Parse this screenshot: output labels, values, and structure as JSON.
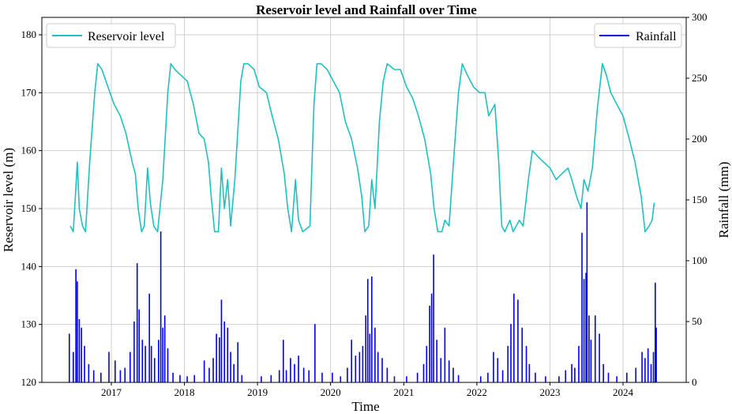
{
  "chart_data": {
    "type": "line",
    "title": "Reservoir level and Rainfall over Time",
    "xlabel": "Time",
    "ylabel_left": "Reservoir level (m)",
    "ylabel_right": "Rainfall (mm)",
    "x_range": [
      "2016-01-01",
      "2024-12-31"
    ],
    "x_ticks": [
      "2017",
      "2018",
      "2019",
      "2020",
      "2021",
      "2022",
      "2023",
      "2024"
    ],
    "ylim_left": [
      120,
      183
    ],
    "yticks_left": [
      120,
      130,
      140,
      150,
      160,
      170,
      180
    ],
    "ylim_right": [
      0,
      300
    ],
    "yticks_right": [
      0,
      50,
      100,
      150,
      200,
      250,
      300
    ],
    "grid": true,
    "colors": {
      "reservoir": "#20c0c0",
      "rainfall": "#0000ee"
    },
    "series": [
      {
        "name": "Reservoir level",
        "axis": "left",
        "type": "line",
        "points": [
          [
            "2016-06-10",
            147
          ],
          [
            "2016-06-25",
            146
          ],
          [
            "2016-07-05",
            152
          ],
          [
            "2016-07-15",
            158
          ],
          [
            "2016-07-25",
            150
          ],
          [
            "2016-08-10",
            147
          ],
          [
            "2016-08-25",
            146
          ],
          [
            "2016-09-15",
            158
          ],
          [
            "2016-10-10",
            170
          ],
          [
            "2016-10-25",
            175
          ],
          [
            "2016-11-15",
            174
          ],
          [
            "2016-12-15",
            171
          ],
          [
            "2017-01-15",
            168
          ],
          [
            "2017-02-15",
            166
          ],
          [
            "2017-03-15",
            163
          ],
          [
            "2017-04-15",
            158
          ],
          [
            "2017-05-01",
            156
          ],
          [
            "2017-05-15",
            150
          ],
          [
            "2017-06-01",
            146
          ],
          [
            "2017-06-15",
            147
          ],
          [
            "2017-07-01",
            157
          ],
          [
            "2017-07-15",
            151
          ],
          [
            "2017-08-01",
            147
          ],
          [
            "2017-08-20",
            146
          ],
          [
            "2017-09-15",
            155
          ],
          [
            "2017-10-10",
            170
          ],
          [
            "2017-10-25",
            175
          ],
          [
            "2017-11-15",
            174
          ],
          [
            "2017-12-15",
            173
          ],
          [
            "2018-01-15",
            172
          ],
          [
            "2018-02-15",
            168
          ],
          [
            "2018-03-15",
            163
          ],
          [
            "2018-04-10",
            162
          ],
          [
            "2018-05-01",
            158
          ],
          [
            "2018-05-15",
            152
          ],
          [
            "2018-06-01",
            146
          ],
          [
            "2018-06-20",
            146
          ],
          [
            "2018-07-05",
            157
          ],
          [
            "2018-07-20",
            150
          ],
          [
            "2018-08-05",
            155
          ],
          [
            "2018-08-20",
            147
          ],
          [
            "2018-09-10",
            155
          ],
          [
            "2018-10-10",
            172
          ],
          [
            "2018-10-25",
            175
          ],
          [
            "2018-11-15",
            175
          ],
          [
            "2018-12-15",
            174
          ],
          [
            "2019-01-10",
            171
          ],
          [
            "2019-02-15",
            170
          ],
          [
            "2019-03-15",
            166
          ],
          [
            "2019-04-15",
            162
          ],
          [
            "2019-05-15",
            156
          ],
          [
            "2019-06-01",
            150
          ],
          [
            "2019-06-20",
            146
          ],
          [
            "2019-07-10",
            155
          ],
          [
            "2019-07-25",
            148
          ],
          [
            "2019-08-15",
            146
          ],
          [
            "2019-09-20",
            147
          ],
          [
            "2019-10-10",
            168
          ],
          [
            "2019-10-25",
            175
          ],
          [
            "2019-11-15",
            175
          ],
          [
            "2019-12-15",
            174
          ],
          [
            "2020-01-15",
            172
          ],
          [
            "2020-02-15",
            170
          ],
          [
            "2020-03-15",
            165
          ],
          [
            "2020-04-15",
            162
          ],
          [
            "2020-05-15",
            157
          ],
          [
            "2020-06-05",
            152
          ],
          [
            "2020-06-20",
            146
          ],
          [
            "2020-07-10",
            147
          ],
          [
            "2020-07-25",
            155
          ],
          [
            "2020-08-10",
            150
          ],
          [
            "2020-09-01",
            165
          ],
          [
            "2020-09-20",
            172
          ],
          [
            "2020-10-10",
            175
          ],
          [
            "2020-11-15",
            174
          ],
          [
            "2020-12-15",
            174
          ],
          [
            "2021-01-15",
            171
          ],
          [
            "2021-02-15",
            169
          ],
          [
            "2021-03-15",
            166
          ],
          [
            "2021-04-15",
            162
          ],
          [
            "2021-05-15",
            156
          ],
          [
            "2021-06-01",
            150
          ],
          [
            "2021-06-20",
            146
          ],
          [
            "2021-07-10",
            146
          ],
          [
            "2021-07-25",
            148
          ],
          [
            "2021-08-15",
            147
          ],
          [
            "2021-09-10",
            160
          ],
          [
            "2021-10-01",
            170
          ],
          [
            "2021-10-20",
            175
          ],
          [
            "2021-11-15",
            173
          ],
          [
            "2021-12-15",
            171
          ],
          [
            "2022-01-15",
            170
          ],
          [
            "2022-02-10",
            170
          ],
          [
            "2022-03-01",
            166
          ],
          [
            "2022-04-01",
            168
          ],
          [
            "2022-04-20",
            158
          ],
          [
            "2022-05-05",
            147
          ],
          [
            "2022-05-20",
            146
          ],
          [
            "2022-06-15",
            148
          ],
          [
            "2022-07-01",
            146
          ],
          [
            "2022-08-01",
            148
          ],
          [
            "2022-08-20",
            147
          ],
          [
            "2022-09-15",
            155
          ],
          [
            "2022-10-05",
            160
          ],
          [
            "2022-11-01",
            159
          ],
          [
            "2022-12-01",
            158
          ],
          [
            "2023-01-01",
            157
          ],
          [
            "2023-02-01",
            155
          ],
          [
            "2023-03-01",
            156
          ],
          [
            "2023-04-01",
            157
          ],
          [
            "2023-04-20",
            155
          ],
          [
            "2023-05-15",
            152
          ],
          [
            "2023-06-05",
            150
          ],
          [
            "2023-06-20",
            155
          ],
          [
            "2023-07-10",
            153
          ],
          [
            "2023-08-01",
            157
          ],
          [
            "2023-08-25",
            167
          ],
          [
            "2023-09-20",
            175
          ],
          [
            "2023-10-10",
            173
          ],
          [
            "2023-11-01",
            170
          ],
          [
            "2023-12-01",
            168
          ],
          [
            "2024-01-01",
            166
          ],
          [
            "2024-02-01",
            162
          ],
          [
            "2024-03-01",
            158
          ],
          [
            "2024-04-01",
            152
          ],
          [
            "2024-04-20",
            146
          ],
          [
            "2024-05-10",
            147
          ],
          [
            "2024-05-25",
            148
          ],
          [
            "2024-06-05",
            151
          ]
        ]
      },
      {
        "name": "Rainfall",
        "axis": "right",
        "type": "bar",
        "points": [
          [
            "2016-06-05",
            40
          ],
          [
            "2016-06-25",
            25
          ],
          [
            "2016-07-08",
            93
          ],
          [
            "2016-07-15",
            83
          ],
          [
            "2016-07-25",
            52
          ],
          [
            "2016-08-05",
            45
          ],
          [
            "2016-08-20",
            30
          ],
          [
            "2016-09-10",
            15
          ],
          [
            "2016-10-05",
            10
          ],
          [
            "2016-11-10",
            8
          ],
          [
            "2016-12-20",
            25
          ],
          [
            "2017-01-20",
            18
          ],
          [
            "2017-02-15",
            10
          ],
          [
            "2017-03-10",
            12
          ],
          [
            "2017-04-05",
            25
          ],
          [
            "2017-04-25",
            50
          ],
          [
            "2017-05-10",
            98
          ],
          [
            "2017-05-20",
            60
          ],
          [
            "2017-06-05",
            35
          ],
          [
            "2017-06-20",
            30
          ],
          [
            "2017-07-10",
            73
          ],
          [
            "2017-07-20",
            30
          ],
          [
            "2017-08-05",
            20
          ],
          [
            "2017-08-25",
            35
          ],
          [
            "2017-09-05",
            124
          ],
          [
            "2017-09-15",
            45
          ],
          [
            "2017-09-25",
            55
          ],
          [
            "2017-10-10",
            28
          ],
          [
            "2017-11-05",
            8
          ],
          [
            "2017-12-10",
            6
          ],
          [
            "2018-01-15",
            5
          ],
          [
            "2018-02-20",
            6
          ],
          [
            "2018-04-10",
            18
          ],
          [
            "2018-05-05",
            12
          ],
          [
            "2018-05-25",
            20
          ],
          [
            "2018-06-10",
            40
          ],
          [
            "2018-06-25",
            37
          ],
          [
            "2018-07-05",
            68
          ],
          [
            "2018-07-20",
            50
          ],
          [
            "2018-08-05",
            45
          ],
          [
            "2018-08-20",
            25
          ],
          [
            "2018-09-05",
            15
          ],
          [
            "2018-09-25",
            33
          ],
          [
            "2018-10-15",
            6
          ],
          [
            "2019-01-20",
            5
          ],
          [
            "2019-03-10",
            6
          ],
          [
            "2019-04-20",
            10
          ],
          [
            "2019-05-10",
            35
          ],
          [
            "2019-05-25",
            10
          ],
          [
            "2019-06-15",
            20
          ],
          [
            "2019-07-05",
            15
          ],
          [
            "2019-07-25",
            22
          ],
          [
            "2019-08-20",
            12
          ],
          [
            "2019-09-15",
            10
          ],
          [
            "2019-10-15",
            48
          ],
          [
            "2019-11-20",
            8
          ],
          [
            "2020-01-10",
            8
          ],
          [
            "2020-02-20",
            5
          ],
          [
            "2020-03-25",
            12
          ],
          [
            "2020-04-15",
            35
          ],
          [
            "2020-05-05",
            22
          ],
          [
            "2020-05-25",
            25
          ],
          [
            "2020-06-10",
            30
          ],
          [
            "2020-06-25",
            55
          ],
          [
            "2020-07-05",
            85
          ],
          [
            "2020-07-15",
            40
          ],
          [
            "2020-07-25",
            87
          ],
          [
            "2020-08-10",
            45
          ],
          [
            "2020-08-25",
            25
          ],
          [
            "2020-09-15",
            20
          ],
          [
            "2020-10-10",
            12
          ],
          [
            "2020-11-15",
            5
          ],
          [
            "2021-01-15",
            5
          ],
          [
            "2021-03-10",
            8
          ],
          [
            "2021-04-10",
            15
          ],
          [
            "2021-04-25",
            30
          ],
          [
            "2021-05-10",
            63
          ],
          [
            "2021-05-20",
            73
          ],
          [
            "2021-05-30",
            105
          ],
          [
            "2021-06-15",
            35
          ],
          [
            "2021-07-05",
            20
          ],
          [
            "2021-07-25",
            45
          ],
          [
            "2021-08-15",
            18
          ],
          [
            "2021-09-05",
            12
          ],
          [
            "2021-10-01",
            6
          ],
          [
            "2022-01-20",
            5
          ],
          [
            "2022-02-25",
            8
          ],
          [
            "2022-03-25",
            25
          ],
          [
            "2022-04-15",
            20
          ],
          [
            "2022-05-10",
            10
          ],
          [
            "2022-06-05",
            30
          ],
          [
            "2022-06-20",
            48
          ],
          [
            "2022-07-05",
            73
          ],
          [
            "2022-07-25",
            68
          ],
          [
            "2022-08-15",
            45
          ],
          [
            "2022-09-05",
            30
          ],
          [
            "2022-09-20",
            15
          ],
          [
            "2022-10-20",
            8
          ],
          [
            "2022-12-10",
            5
          ],
          [
            "2023-02-15",
            5
          ],
          [
            "2023-03-20",
            10
          ],
          [
            "2023-04-20",
            15
          ],
          [
            "2023-05-05",
            12
          ],
          [
            "2023-05-25",
            30
          ],
          [
            "2023-06-10",
            123
          ],
          [
            "2023-06-20",
            85
          ],
          [
            "2023-06-30",
            90
          ],
          [
            "2023-07-05",
            148
          ],
          [
            "2023-07-15",
            55
          ],
          [
            "2023-07-25",
            35
          ],
          [
            "2023-08-15",
            55
          ],
          [
            "2023-09-05",
            40
          ],
          [
            "2023-09-25",
            15
          ],
          [
            "2023-10-20",
            8
          ],
          [
            "2023-12-01",
            5
          ],
          [
            "2024-01-20",
            8
          ],
          [
            "2024-03-05",
            12
          ],
          [
            "2024-04-05",
            25
          ],
          [
            "2024-04-20",
            20
          ],
          [
            "2024-05-05",
            28
          ],
          [
            "2024-05-20",
            15
          ],
          [
            "2024-06-01",
            25
          ],
          [
            "2024-06-10",
            82
          ],
          [
            "2024-06-15",
            45
          ]
        ]
      }
    ],
    "legend": [
      {
        "label": "Reservoir level",
        "placement": "top-left"
      },
      {
        "label": "Rainfall",
        "placement": "top-right"
      }
    ]
  }
}
